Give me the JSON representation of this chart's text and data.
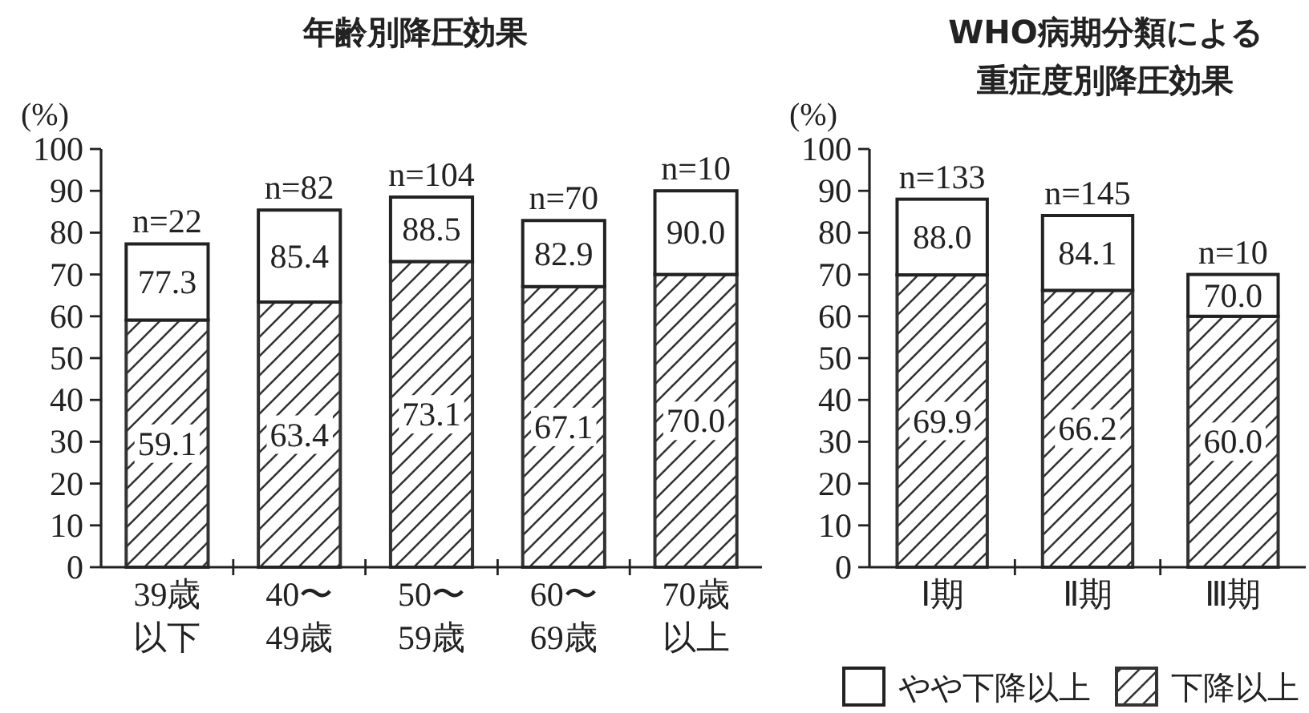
{
  "chart_data": [
    {
      "type": "bar",
      "title": "年齢別降圧効果",
      "ylabel": "(%)",
      "categories": [
        "39歳以下",
        "40〜49歳",
        "50〜59歳",
        "60〜69歳",
        "70歳以上"
      ],
      "stacked": true,
      "series": [
        {
          "color": "#333333",
          "values": [
            59.1,
            63.4,
            73.1,
            67.1,
            70.0
          ],
          "value_labels": [
            "59.1",
            "63.4",
            "73.1",
            "67.1",
            "70.0"
          ]
        },
        {
          "color": "#ffffff",
          "values": [
            18.2,
            22.0,
            15.4,
            15.8,
            20.0
          ]
        }
      ],
      "totals": [
        "77.3",
        "85.4",
        "88.5",
        "82.9",
        "90.0"
      ],
      "annotations": [
        {
          "text": "n=22",
          "x": "39歳以下",
          "y": 77.3
        },
        {
          "text": "n=82",
          "x": "40〜49歳",
          "y": 85.4
        },
        {
          "text": "n=104",
          "x": "50〜59歳",
          "y": 88.5
        },
        {
          "text": "n=70",
          "x": "60〜69歳",
          "y": 82.9
        },
        {
          "text": "n=10",
          "x": "70歳以上",
          "y": 90.0
        }
      ],
      "ylim": [
        0,
        100
      ],
      "yticks": [
        0,
        10,
        20,
        30,
        40,
        50,
        60,
        70,
        80,
        90,
        100
      ]
    },
    {
      "type": "bar",
      "title": "WHO病期分類による重症度別降圧効果",
      "ylabel": "(%)",
      "categories": [
        "Ⅰ期",
        "Ⅱ期",
        "Ⅲ期"
      ],
      "stacked": true,
      "series": [
        {
          "name": "下降以上",
          "color": "#333333",
          "values": [
            69.9,
            66.2,
            60.0
          ],
          "value_labels": [
            "69.9",
            "66.2",
            "60.0"
          ]
        },
        {
          "name": "やや下降以上",
          "color": "#ffffff",
          "values": [
            18.1,
            17.9,
            10.0
          ]
        }
      ],
      "totals": [
        "88.0",
        "84.1",
        "70.0"
      ],
      "annotations": [
        {
          "text": "n=133",
          "x": "Ⅰ期",
          "y": 88.0
        },
        {
          "text": "n=145",
          "x": "Ⅱ期",
          "y": 84.1
        },
        {
          "text": "n=10",
          "x": "Ⅲ期",
          "y": 70.0
        }
      ],
      "ylim": [
        0,
        100
      ],
      "yticks": [
        0,
        10,
        20,
        30,
        40,
        50,
        60,
        70,
        80,
        90,
        100
      ],
      "legend": "bottom"
    }
  ]
}
